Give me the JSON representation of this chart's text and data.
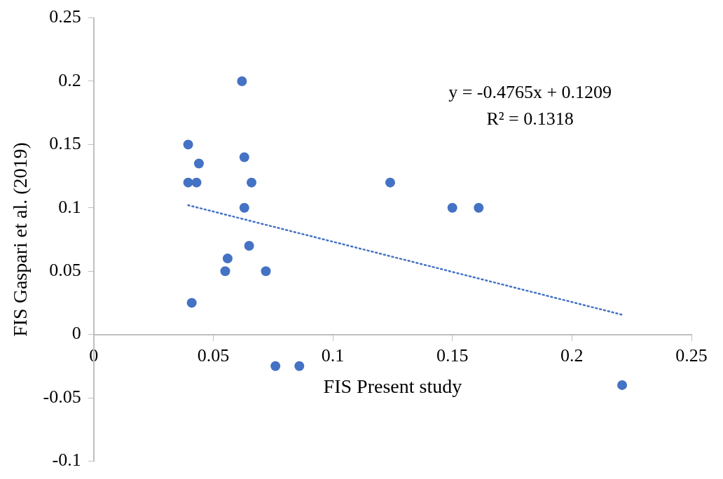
{
  "chart_data": {
    "type": "scatter",
    "xlabel": "FIS Present study",
    "ylabel": "FIS Gaspari et al. (2019)",
    "xlim": [
      0,
      0.25
    ],
    "xticks": [
      0,
      0.05,
      0.1,
      0.15,
      0.2,
      0.25
    ],
    "ylim": [
      -0.1,
      0.25
    ],
    "yticks": [
      -0.1,
      -0.05,
      0,
      0.05,
      0.1,
      0.15,
      0.2,
      0.25
    ],
    "grid": false,
    "legend": false,
    "marker": "circle",
    "series": [
      {
        "type": "scatter",
        "color": "#4472c4",
        "x": [
          0.0395,
          0.0395,
          0.043,
          0.044,
          0.062,
          0.063,
          0.066,
          0.063,
          0.065,
          0.056,
          0.055,
          0.072,
          0.041,
          0.124,
          0.15,
          0.161,
          0.221,
          0.076,
          0.086
        ],
        "values": [
          0.15,
          0.12,
          0.12,
          0.135,
          0.2,
          0.14,
          0.12,
          0.1,
          0.07,
          0.06,
          0.05,
          0.05,
          0.025,
          0.12,
          0.1,
          0.1,
          -0.04,
          -0.025,
          -0.025
        ]
      },
      {
        "type": "line",
        "color": "#4472c4",
        "line_style": "dotted",
        "marker": "none",
        "x": [
          0.0395,
          0.221
        ],
        "values": [
          0.1021,
          0.0156
        ]
      }
    ],
    "annotations": [
      "y = -0.4765x + 0.1209",
      "R² = 0.1318"
    ]
  }
}
